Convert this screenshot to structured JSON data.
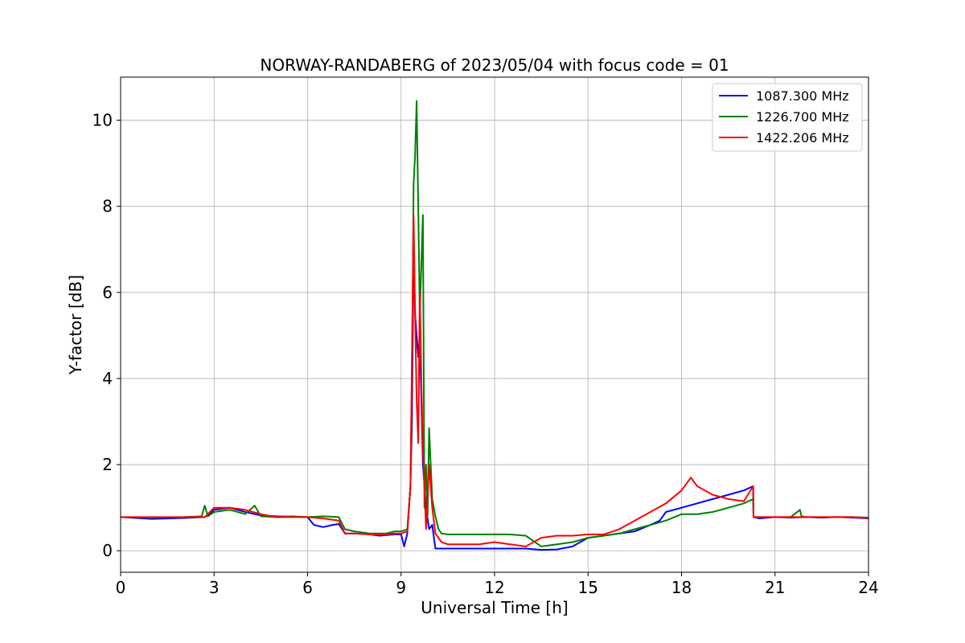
{
  "chart_data": {
    "type": "line",
    "title": "NORWAY-RANDABERG of 2023/05/04 with focus code = 01",
    "xlabel": "Universal Time [h]",
    "ylabel": "Y-factor [dB]",
    "xlim": [
      0,
      24
    ],
    "ylim": [
      -0.5,
      11
    ],
    "xticks": [
      0,
      3,
      6,
      9,
      12,
      15,
      18,
      21,
      24
    ],
    "yticks": [
      0,
      2,
      4,
      6,
      8,
      10
    ],
    "grid": true,
    "legend_position": "top-right",
    "series": [
      {
        "name": "1087.300 MHz",
        "color": "#0000ff",
        "x": [
          0,
          1,
          2,
          2.7,
          3,
          3.5,
          4,
          4.5,
          5,
          5.5,
          6,
          6.2,
          6.5,
          6.8,
          7,
          7.2,
          7.5,
          8,
          8.3,
          8.8,
          9,
          9.1,
          9.2,
          9.3,
          9.35,
          9.4,
          9.45,
          9.5,
          9.55,
          9.6,
          9.7,
          9.8,
          9.9,
          10,
          10.1,
          10.2,
          10.3,
          10.5,
          11,
          11.5,
          12,
          12.5,
          13,
          13.5,
          14,
          14.5,
          15,
          15.5,
          16,
          16.5,
          17,
          17.3,
          17.5,
          18,
          18.5,
          19,
          19.5,
          20,
          20.3,
          20.31,
          20.5,
          21,
          21.5,
          22,
          22.5,
          23,
          23.5,
          24
        ],
        "y": [
          0.78,
          0.74,
          0.76,
          0.78,
          0.95,
          1.0,
          0.9,
          0.82,
          0.8,
          0.79,
          0.78,
          0.6,
          0.55,
          0.6,
          0.62,
          0.4,
          0.4,
          0.38,
          0.35,
          0.38,
          0.38,
          0.1,
          0.4,
          1.5,
          3.0,
          7.0,
          5.5,
          5.0,
          4.5,
          5.0,
          2.0,
          1.0,
          0.5,
          0.6,
          0.05,
          0.05,
          0.05,
          0.05,
          0.05,
          0.05,
          0.05,
          0.05,
          0.05,
          0.02,
          0.03,
          0.1,
          0.3,
          0.35,
          0.4,
          0.45,
          0.6,
          0.7,
          0.9,
          1.0,
          1.1,
          1.2,
          1.3,
          1.4,
          1.5,
          0.78,
          0.75,
          0.78,
          0.77,
          0.78,
          0.77,
          0.78,
          0.77,
          0.75
        ]
      },
      {
        "name": "1226.700 MHz",
        "color": "#008000",
        "x": [
          0,
          1,
          2,
          2.6,
          2.7,
          2.8,
          3,
          3.5,
          4,
          4.3,
          4.5,
          5,
          5.5,
          6,
          6.5,
          7,
          7.2,
          7.5,
          8,
          8.5,
          8.8,
          9,
          9.2,
          9.3,
          9.35,
          9.4,
          9.45,
          9.5,
          9.55,
          9.6,
          9.7,
          9.75,
          9.8,
          9.85,
          9.9,
          10,
          10.1,
          10.2,
          10.3,
          10.5,
          11,
          11.5,
          12,
          12.5,
          13,
          13.5,
          14,
          14.5,
          15,
          15.5,
          16,
          16.5,
          17,
          17.5,
          18,
          18.5,
          19,
          19.5,
          20,
          20.3,
          20.31,
          20.5,
          21,
          21.5,
          21.8,
          21.85,
          22,
          22.5,
          23,
          23.5,
          24
        ],
        "y": [
          0.78,
          0.77,
          0.78,
          0.8,
          1.05,
          0.8,
          0.9,
          0.95,
          0.85,
          1.05,
          0.8,
          0.78,
          0.8,
          0.78,
          0.8,
          0.78,
          0.5,
          0.45,
          0.4,
          0.4,
          0.45,
          0.45,
          0.5,
          1.5,
          4.0,
          8.5,
          9.2,
          10.45,
          8.0,
          5.5,
          7.8,
          1.0,
          2.0,
          0.8,
          2.85,
          1.2,
          0.8,
          0.5,
          0.4,
          0.38,
          0.38,
          0.38,
          0.38,
          0.38,
          0.35,
          0.1,
          0.15,
          0.2,
          0.3,
          0.35,
          0.4,
          0.5,
          0.6,
          0.7,
          0.85,
          0.85,
          0.9,
          1.0,
          1.1,
          1.2,
          0.78,
          0.78,
          0.78,
          0.78,
          0.95,
          0.8,
          0.78,
          0.78,
          0.78,
          0.78,
          0.77
        ]
      },
      {
        "name": "1422.206 MHz",
        "color": "#ff0000",
        "x": [
          0,
          1,
          2,
          2.7,
          3,
          3.5,
          4,
          4.5,
          5,
          5.5,
          6,
          6.5,
          7,
          7.2,
          7.5,
          8,
          8.5,
          8.8,
          9,
          9.2,
          9.3,
          9.35,
          9.4,
          9.45,
          9.5,
          9.55,
          9.6,
          9.65,
          9.7,
          9.8,
          9.9,
          10,
          10.1,
          10.3,
          10.5,
          11,
          11.5,
          12,
          12.5,
          13,
          13.5,
          14,
          14.5,
          15,
          15.5,
          16,
          16.5,
          17,
          17.5,
          18,
          18.3,
          18.5,
          19,
          19.5,
          20,
          20.3,
          20.31,
          20.5,
          21,
          21.5,
          22,
          22.5,
          23,
          23.5,
          24
        ],
        "y": [
          0.78,
          0.78,
          0.78,
          0.78,
          1.0,
          1.0,
          0.95,
          0.85,
          0.78,
          0.78,
          0.78,
          0.75,
          0.7,
          0.4,
          0.4,
          0.38,
          0.38,
          0.4,
          0.4,
          0.45,
          1.5,
          4.5,
          7.8,
          5.5,
          3.5,
          2.5,
          6.0,
          4.0,
          2.4,
          0.5,
          2.0,
          1.0,
          0.4,
          0.2,
          0.15,
          0.15,
          0.15,
          0.2,
          0.15,
          0.1,
          0.3,
          0.35,
          0.35,
          0.38,
          0.38,
          0.5,
          0.7,
          0.9,
          1.1,
          1.4,
          1.7,
          1.5,
          1.3,
          1.2,
          1.15,
          1.5,
          0.78,
          0.78,
          0.78,
          0.78,
          0.78,
          0.78,
          0.78,
          0.78,
          0.76
        ]
      }
    ]
  }
}
